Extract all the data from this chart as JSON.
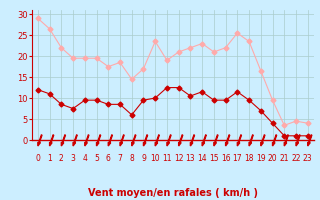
{
  "title": "",
  "xlabel": "Vent moyen/en rafales ( km/h )",
  "background_color": "#cceeff",
  "grid_color": "#aacccc",
  "x": [
    0,
    1,
    2,
    3,
    4,
    5,
    6,
    7,
    8,
    9,
    10,
    11,
    12,
    13,
    14,
    15,
    16,
    17,
    18,
    19,
    20,
    21,
    22,
    23
  ],
  "wind_avg": [
    12,
    11,
    8.5,
    7.5,
    9.5,
    9.5,
    8.5,
    8.5,
    6,
    9.5,
    10,
    12.5,
    12.5,
    10.5,
    11.5,
    9.5,
    9.5,
    11.5,
    9.5,
    7,
    4,
    1,
    1,
    1
  ],
  "wind_gust": [
    29,
    26.5,
    22,
    19.5,
    19.5,
    19.5,
    17.5,
    18.5,
    14.5,
    17,
    23.5,
    19,
    21,
    22,
    23,
    21,
    22,
    25.5,
    23.5,
    16.5,
    9.5,
    3.5,
    4.5,
    4
  ],
  "avg_color": "#cc0000",
  "gust_color": "#ffaaaa",
  "marker_size": 2.5,
  "line_width": 0.8,
  "ylim": [
    0,
    31
  ],
  "yticks": [
    0,
    5,
    10,
    15,
    20,
    25,
    30
  ],
  "xtick_labels": [
    "0",
    "1",
    "2",
    "3",
    "4",
    "5",
    "6",
    "7",
    "8",
    "9",
    "10",
    "11",
    "12",
    "13",
    "14",
    "15",
    "16",
    "17",
    "18",
    "19",
    "20",
    "21",
    "22",
    "23"
  ]
}
